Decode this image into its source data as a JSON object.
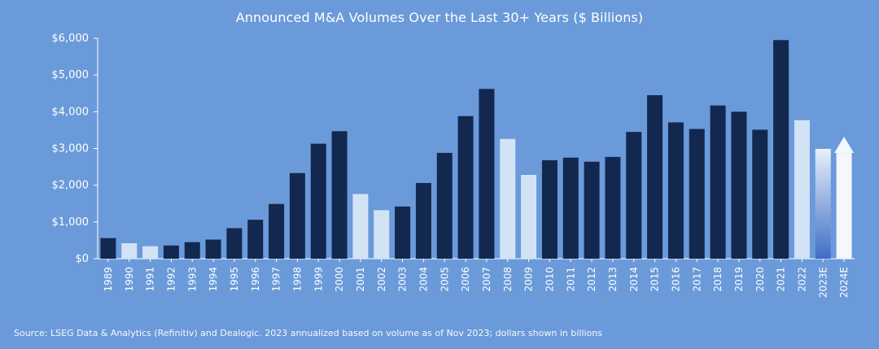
{
  "chart_data": {
    "type": "bar",
    "title": "Announced M&A Volumes Over the Last 30+ Years ($ Billions)",
    "xlabel": "",
    "ylabel": "",
    "ylim": [
      0,
      6000
    ],
    "y_ticks": [
      "$0",
      "$1,000",
      "$2,000",
      "$3,000",
      "$4,000",
      "$5,000",
      "$6,000"
    ],
    "y_tick_values": [
      0,
      1000,
      2000,
      3000,
      4000,
      5000,
      6000
    ],
    "grid": false,
    "categories": [
      "1989",
      "1990",
      "1991",
      "1992",
      "1993",
      "1994",
      "1995",
      "1996",
      "1997",
      "1998",
      "1999",
      "2000",
      "2001",
      "2002",
      "2003",
      "2004",
      "2005",
      "2006",
      "2007",
      "2008",
      "2009",
      "2010",
      "2011",
      "2012",
      "2013",
      "2014",
      "2015",
      "2016",
      "2017",
      "2018",
      "2019",
      "2020",
      "2021",
      "2022",
      "2023E",
      "2024E"
    ],
    "values": [
      560,
      420,
      340,
      360,
      450,
      520,
      830,
      1060,
      1490,
      2330,
      3130,
      3470,
      1760,
      1320,
      1420,
      2060,
      2880,
      3880,
      4620,
      3260,
      2280,
      2680,
      2750,
      2640,
      2770,
      3450,
      4450,
      3710,
      3530,
      4170,
      4000,
      3510,
      5950,
      3770,
      2990,
      3320
    ],
    "bar_styles": [
      "dark",
      "light",
      "light",
      "dark",
      "dark",
      "dark",
      "dark",
      "dark",
      "dark",
      "dark",
      "dark",
      "dark",
      "light",
      "light",
      "dark",
      "dark",
      "dark",
      "dark",
      "dark",
      "light",
      "light",
      "dark",
      "dark",
      "dark",
      "dark",
      "dark",
      "dark",
      "dark",
      "dark",
      "dark",
      "dark",
      "dark",
      "dark",
      "light",
      "gradient",
      "arrow"
    ],
    "colors": {
      "background": "#6a9ad9",
      "dark": "#13284f",
      "light": "#d3e3f6",
      "gradient_top": "#e8f0fb",
      "gradient_bottom": "#3f6ec4",
      "arrow": "#f4f7fc",
      "axis": "#ffffff"
    },
    "source": "Source: LSEG Data & Analytics (Refinitiv) and Dealogic. 2023 annualized based on volume as of Nov 2023; dollars shown in billions"
  }
}
